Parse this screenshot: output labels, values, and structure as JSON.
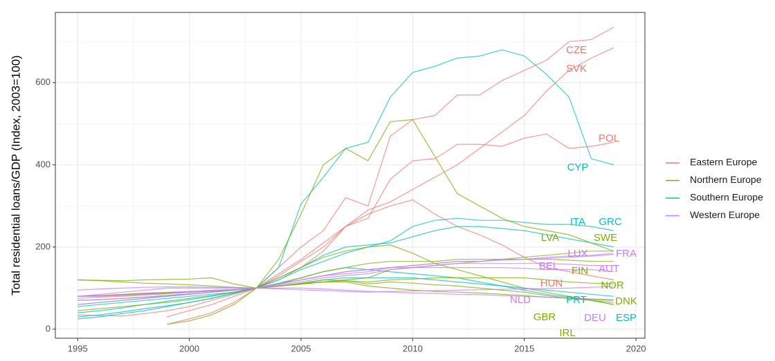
{
  "chart_data": {
    "type": "line",
    "y_label": "Total residential loans/GDP (Index, 2003=100)",
    "x": [
      1995,
      1996,
      1997,
      1998,
      1999,
      2000,
      2001,
      2002,
      2003,
      2004,
      2005,
      2006,
      2007,
      2008,
      2009,
      2010,
      2011,
      2012,
      2013,
      2014,
      2015,
      2016,
      2017,
      2018,
      2019
    ],
    "xlim": [
      1994,
      2020.4
    ],
    "xticks": [
      1995,
      2000,
      2005,
      2010,
      2015,
      2020
    ],
    "ylim": [
      -22,
      771
    ],
    "yticks": [
      0,
      200,
      400,
      600
    ],
    "grid": true,
    "legend": [
      {
        "name": "Eastern Europe",
        "color": "#F8766D"
      },
      {
        "name": "Northern Europe",
        "color": "#7CAE00"
      },
      {
        "name": "Southern Europe",
        "color": "#00BFC4"
      },
      {
        "name": "Western Europe",
        "color": "#C77CFF"
      }
    ],
    "series": [
      {
        "name": "CZE",
        "color": "#F8766D",
        "values": [
          null,
          null,
          null,
          null,
          30,
          45,
          60,
          80,
          100,
          150,
          200,
          240,
          320,
          300,
          470,
          510,
          520,
          570,
          570,
          605,
          630,
          655,
          700,
          705,
          735
        ]
      },
      {
        "name": "SVK",
        "color": "#F8766D",
        "values": [
          null,
          null,
          null,
          null,
          12,
          25,
          40,
          65,
          100,
          135,
          170,
          210,
          250,
          290,
          310,
          340,
          370,
          400,
          440,
          480,
          520,
          580,
          630,
          660,
          685
        ]
      },
      {
        "name": "POL",
        "color": "#F8766D",
        "values": [
          35,
          33,
          32,
          38,
          45,
          55,
          70,
          85,
          100,
          130,
          165,
          200,
          250,
          270,
          365,
          410,
          415,
          450,
          450,
          445,
          465,
          475,
          440,
          445,
          455
        ]
      },
      {
        "name": "HUN",
        "color": "#F8766D",
        "values": [
          80,
          80,
          82,
          85,
          88,
          90,
          93,
          96,
          100,
          120,
          150,
          190,
          250,
          280,
          300,
          315,
          280,
          250,
          230,
          205,
          175,
          150,
          140,
          130,
          120
        ]
      },
      {
        "name": "CYP",
        "color": "#00BFC4",
        "values": [
          55,
          60,
          65,
          70,
          75,
          80,
          85,
          90,
          100,
          150,
          305,
          370,
          440,
          455,
          565,
          625,
          640,
          660,
          665,
          680,
          665,
          620,
          565,
          415,
          400
        ]
      },
      {
        "name": "ITA",
        "color": "#00BFC4",
        "values": [
          30,
          35,
          42,
          50,
          57,
          65,
          75,
          87,
          100,
          120,
          145,
          165,
          185,
          200,
          215,
          250,
          265,
          270,
          265,
          265,
          260,
          255,
          255,
          250,
          240
        ]
      },
      {
        "name": "GRC",
        "color": "#00BFC4",
        "values": [
          25,
          30,
          38,
          45,
          55,
          65,
          75,
          88,
          100,
          125,
          150,
          180,
          200,
          205,
          210,
          225,
          240,
          250,
          250,
          245,
          240,
          230,
          220,
          210,
          200
        ]
      },
      {
        "name": "PRT",
        "color": "#00BFC4",
        "values": [
          60,
          65,
          70,
          75,
          80,
          85,
          90,
          95,
          100,
          105,
          110,
          120,
          125,
          125,
          125,
          125,
          120,
          115,
          110,
          105,
          100,
          95,
          90,
          85,
          80
        ]
      },
      {
        "name": "ESP",
        "color": "#00BFC4",
        "values": [
          40,
          45,
          52,
          60,
          68,
          75,
          82,
          90,
          100,
          112,
          125,
          140,
          150,
          145,
          140,
          135,
          130,
          125,
          115,
          105,
          95,
          85,
          78,
          70,
          60
        ]
      },
      {
        "name": "LVA",
        "color": "#7CAE00",
        "values": [
          null,
          null,
          null,
          null,
          12,
          20,
          35,
          60,
          100,
          170,
          280,
          400,
          440,
          410,
          505,
          510,
          420,
          330,
          300,
          270,
          250,
          240,
          230,
          210,
          190
        ]
      },
      {
        "name": "SWE",
        "color": "#7CAE00",
        "values": [
          80,
          82,
          84,
          86,
          88,
          90,
          93,
          96,
          100,
          105,
          110,
          115,
          120,
          125,
          145,
          150,
          155,
          160,
          165,
          170,
          175,
          180,
          185,
          190,
          190
        ]
      },
      {
        "name": "FIN",
        "color": "#7CAE00",
        "values": [
          70,
          72,
          75,
          78,
          82,
          86,
          90,
          95,
          100,
          110,
          125,
          140,
          150,
          160,
          165,
          165,
          165,
          170,
          170,
          170,
          170,
          170,
          168,
          165,
          165
        ]
      },
      {
        "name": "NOR",
        "color": "#7CAE00",
        "values": [
          80,
          82,
          84,
          86,
          88,
          90,
          93,
          96,
          100,
          105,
          110,
          115,
          118,
          115,
          120,
          122,
          125,
          125,
          125,
          125,
          125,
          120,
          115,
          112,
          110
        ]
      },
      {
        "name": "DNK",
        "color": "#7CAE00",
        "values": [
          120,
          118,
          115,
          112,
          110,
          108,
          105,
          102,
          100,
          105,
          112,
          120,
          118,
          110,
          115,
          112,
          108,
          105,
          100,
          95,
          90,
          82,
          75,
          70,
          65
        ]
      },
      {
        "name": "GBR",
        "color": "#7CAE00",
        "values": [
          120,
          119,
          118,
          120,
          121,
          122,
          125,
          110,
          100,
          105,
          110,
          115,
          115,
          105,
          100,
          95,
          92,
          90,
          88,
          85,
          82,
          78,
          75,
          72,
          70
        ]
      },
      {
        "name": "IRL",
        "color": "#7CAE00",
        "values": [
          45,
          50,
          55,
          60,
          65,
          72,
          80,
          90,
          100,
          125,
          150,
          175,
          190,
          200,
          205,
          185,
          160,
          145,
          130,
          115,
          100,
          90,
          80,
          70,
          60
        ]
      },
      {
        "name": "LUX",
        "color": "#C77CFF",
        "values": [
          80,
          82,
          85,
          88,
          90,
          92,
          95,
          97,
          100,
          110,
          120,
          130,
          140,
          145,
          150,
          155,
          160,
          165,
          165,
          170,
          170,
          175,
          178,
          180,
          185
        ]
      },
      {
        "name": "FRA",
        "color": "#C77CFF",
        "values": [
          70,
          72,
          75,
          78,
          82,
          86,
          90,
          95,
          100,
          110,
          120,
          130,
          135,
          140,
          150,
          155,
          160,
          165,
          165,
          168,
          170,
          172,
          175,
          178,
          182
        ]
      },
      {
        "name": "AUT",
        "color": "#C77CFF",
        "values": [
          60,
          65,
          70,
          75,
          80,
          85,
          90,
          95,
          100,
          110,
          120,
          130,
          140,
          145,
          150,
          150,
          150,
          150,
          150,
          150,
          148,
          145,
          145,
          145,
          140
        ]
      },
      {
        "name": "BEL",
        "color": "#C77CFF",
        "values": [
          75,
          78,
          80,
          83,
          86,
          90,
          93,
          96,
          100,
          108,
          115,
          125,
          130,
          135,
          145,
          150,
          155,
          160,
          160,
          160,
          160,
          160,
          158,
          155,
          155
        ]
      },
      {
        "name": "NLD",
        "color": "#C77CFF",
        "values": [
          80,
          85,
          90,
          95,
          100,
          100,
          100,
          100,
          100,
          100,
          100,
          98,
          95,
          92,
          90,
          88,
          87,
          85,
          84,
          82,
          80,
          78,
          76,
          74,
          72
        ]
      },
      {
        "name": "DEU",
        "color": "#C77CFF",
        "values": [
          95,
          98,
          100,
          102,
          103,
          103,
          102,
          101,
          100,
          98,
          96,
          94,
          92,
          90,
          92,
          93,
          94,
          95,
          96,
          97,
          98,
          99,
          100,
          102,
          104
        ]
      }
    ]
  }
}
